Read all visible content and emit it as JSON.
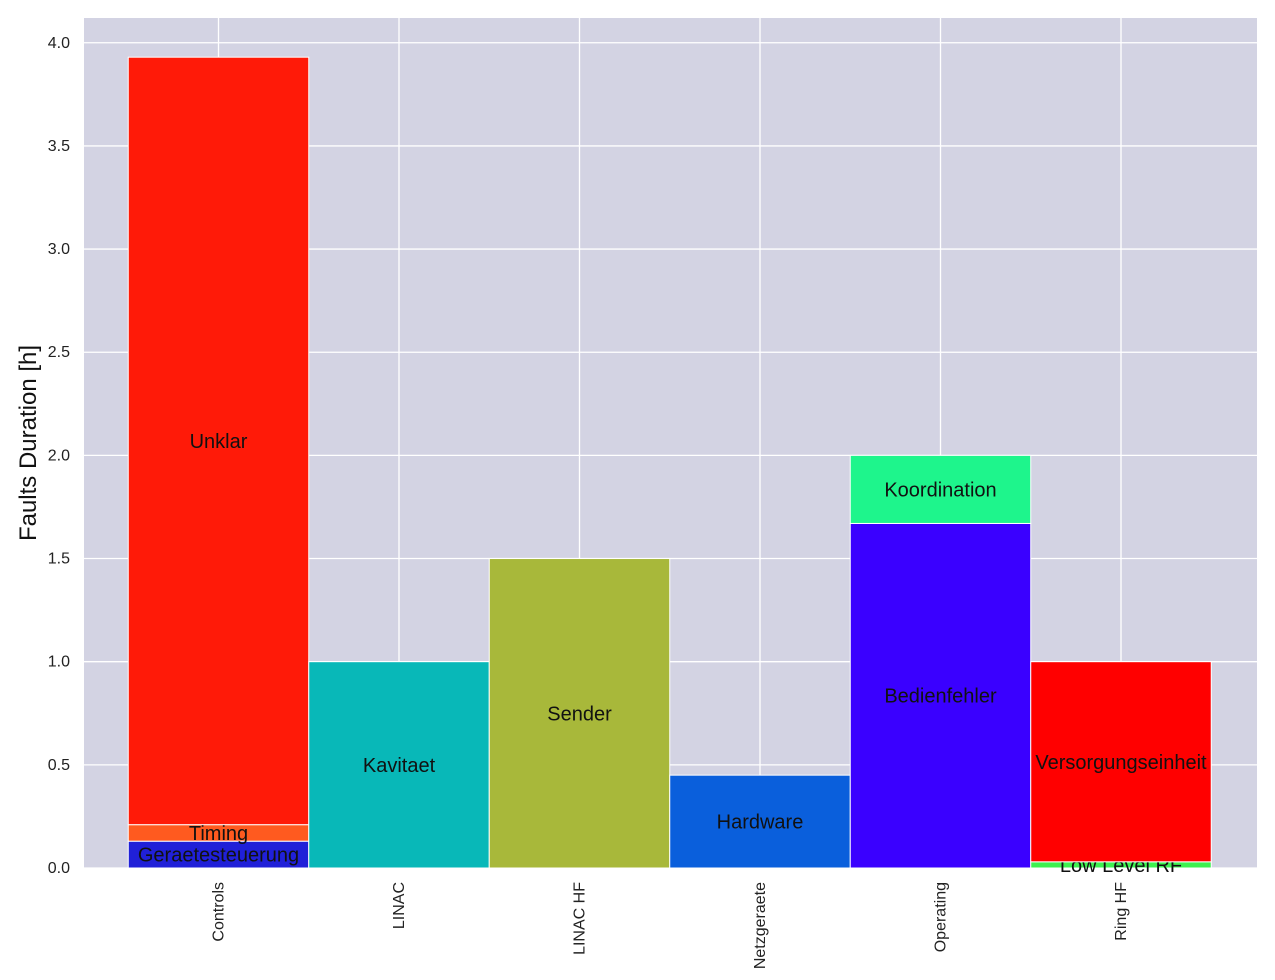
{
  "chart_data": {
    "type": "bar",
    "stacked": true,
    "ylabel": "Faults Duration [h]",
    "xlabel": "",
    "ylim": [
      0,
      4.12
    ],
    "yticks": [
      "0.0",
      "0.5",
      "1.0",
      "1.5",
      "2.0",
      "2.5",
      "3.0",
      "3.5",
      "4.0"
    ],
    "grid": true,
    "background_color": "#d3d3e3",
    "categories": [
      "Controls",
      "LINAC",
      "LINAC HF",
      "Netzgeraete",
      "Operating",
      "Ring HF"
    ],
    "segments": [
      {
        "category": "Controls",
        "label": "Geraetesteuerung",
        "value": 0.13,
        "color": "#2020d8"
      },
      {
        "category": "Controls",
        "label": "Timing",
        "value": 0.08,
        "color": "#ff5a1f"
      },
      {
        "category": "Controls",
        "label": "Unklar",
        "value": 3.72,
        "color": "#ff1a08"
      },
      {
        "category": "LINAC",
        "label": "Kavitaet",
        "value": 1.0,
        "color": "#08b8b8"
      },
      {
        "category": "LINAC HF",
        "label": "Sender",
        "value": 1.5,
        "color": "#a8b83a"
      },
      {
        "category": "Netzgeraete",
        "label": "Hardware",
        "value": 0.45,
        "color": "#0a5fdc"
      },
      {
        "category": "Operating",
        "label": "Bedienfehler",
        "value": 1.67,
        "color": "#3a00ff"
      },
      {
        "category": "Operating",
        "label": "Koordination",
        "value": 0.33,
        "color": "#1ef58c"
      },
      {
        "category": "Ring HF",
        "label": "Low Level RF",
        "value": 0.03,
        "color": "#3ef050"
      },
      {
        "category": "Ring HF",
        "label": "Versorgungseinheit",
        "value": 0.97,
        "color": "#ff0000"
      }
    ]
  }
}
